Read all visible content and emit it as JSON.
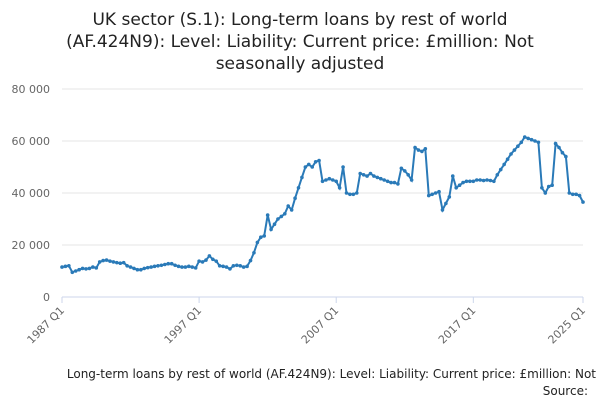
{
  "chart_data": {
    "type": "line",
    "title": [
      "UK sector (S.1): Long-term loans by rest of world",
      "(AF.424N9): Level: Liability: Current price: £million: Not",
      "seasonally adjusted"
    ],
    "x_label": "Long-term loans by rest of world (AF.424N9): Level: Liability: Current price: £million: Not",
    "source": "Source:",
    "categories": [
      "1987 Q1",
      null,
      null,
      null,
      null,
      null,
      null,
      null,
      null,
      null,
      null,
      null,
      null,
      null,
      null,
      null,
      null,
      null,
      null,
      null,
      null,
      null,
      null,
      null,
      null,
      null,
      null,
      null,
      null,
      null,
      null,
      null,
      null,
      null,
      null,
      null,
      null,
      null,
      null,
      null,
      "1997 Q1",
      null,
      null,
      null,
      null,
      null,
      null,
      null,
      null,
      null,
      null,
      null,
      null,
      null,
      null,
      null,
      null,
      null,
      null,
      null,
      null,
      null,
      null,
      null,
      null,
      null,
      null,
      null,
      null,
      null,
      null,
      null,
      null,
      null,
      null,
      null,
      null,
      null,
      null,
      null,
      "2007 Q1",
      null,
      null,
      null,
      null,
      null,
      null,
      null,
      null,
      null,
      null,
      null,
      null,
      null,
      null,
      null,
      null,
      null,
      null,
      null,
      null,
      null,
      null,
      null,
      null,
      null,
      null,
      null,
      null,
      null,
      null,
      null,
      null,
      null,
      null,
      null,
      null,
      null,
      null,
      null,
      "2017 Q1",
      null,
      null,
      null,
      null,
      null,
      null,
      null,
      null,
      null,
      null,
      null,
      null,
      null,
      null,
      null,
      null,
      null,
      null,
      null,
      null,
      null,
      null,
      null,
      null,
      null,
      null,
      null,
      null,
      null,
      null,
      null,
      "2025 Q1"
    ],
    "series": [
      {
        "name": "Long-term loans by rest of world",
        "color": "#2a7ab8",
        "values": [
          11500,
          11800,
          12000,
          9500,
          10000,
          10500,
          11000,
          10800,
          11000,
          11500,
          11200,
          13500,
          14000,
          14200,
          13800,
          13500,
          13200,
          13000,
          13200,
          12000,
          11500,
          11000,
          10500,
          10500,
          11000,
          11300,
          11500,
          11800,
          12000,
          12200,
          12500,
          12800,
          12800,
          12200,
          11800,
          11500,
          11500,
          11800,
          11500,
          11200,
          13800,
          13500,
          14200,
          15800,
          14500,
          13800,
          12000,
          11800,
          11500,
          10800,
          12000,
          12200,
          12000,
          11500,
          11800,
          14000,
          17000,
          21000,
          23000,
          23500,
          31500,
          26000,
          28000,
          30000,
          31000,
          32000,
          35000,
          33500,
          38000,
          42000,
          46000,
          50000,
          51000,
          50000,
          52000,
          52500,
          44500,
          45000,
          45500,
          45000,
          44500,
          42000,
          50000,
          40000,
          39500,
          39500,
          40000,
          47500,
          47000,
          46500,
          47500,
          46500,
          46000,
          45500,
          45000,
          44500,
          44000,
          44000,
          43500,
          49500,
          48500,
          47000,
          45000,
          57500,
          56500,
          56000,
          57000,
          39000,
          39500,
          40000,
          40500,
          33500,
          36000,
          38500,
          46500,
          42000,
          43000,
          44000,
          44500,
          44500,
          44500,
          45000,
          45000,
          44800,
          45000,
          44800,
          44500,
          47000,
          49000,
          51000,
          53000,
          55000,
          56500,
          58000,
          59500,
          61500,
          61000,
          60500,
          60000,
          59500,
          42000,
          40000,
          42500,
          43000,
          59000,
          57500,
          55500,
          54000,
          40000,
          39500,
          39500,
          39000,
          36500
        ]
      }
    ],
    "ylim": [
      0,
      80000
    ],
    "yticks": [
      0,
      {
        "value": 20000,
        "label": "20 000"
      },
      {
        "value": 40000,
        "label": "40 000"
      },
      {
        "value": 60000,
        "label": "60 000"
      },
      {
        "value": 80000,
        "label": "80 000"
      }
    ],
    "grid": true
  }
}
